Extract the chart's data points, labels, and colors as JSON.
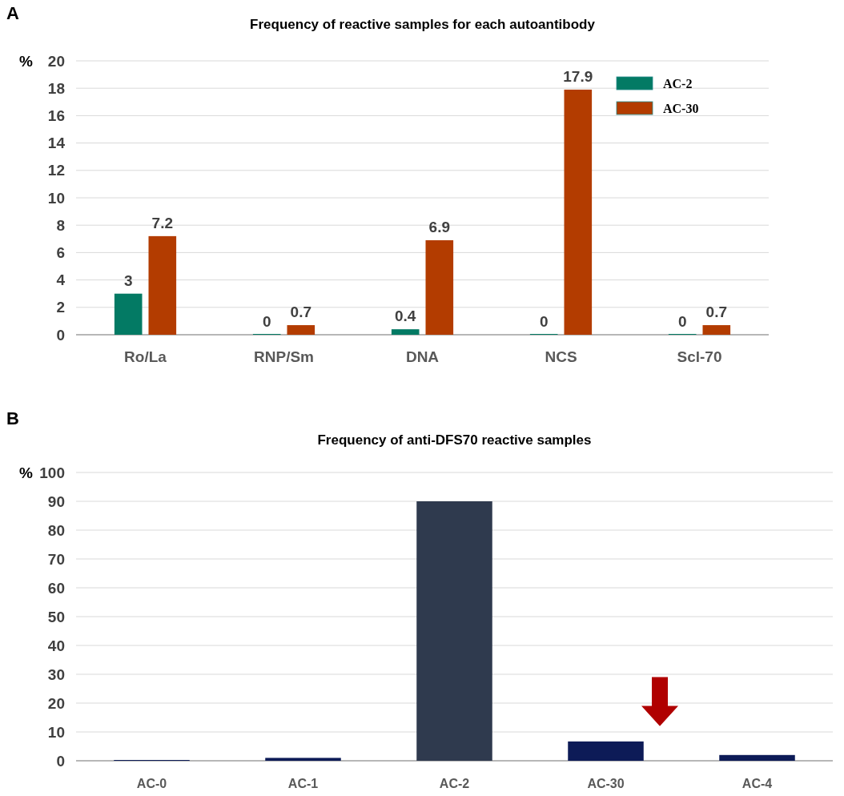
{
  "chart_data": [
    {
      "type": "bar",
      "title": "Frequency of reactive samples for each autoantibody",
      "ylabel": "%",
      "annotations": [
        "A"
      ],
      "categories": [
        "Ro/La",
        "RNP/Sm",
        "DNA",
        "NCS",
        "Scl-70"
      ],
      "series": [
        {
          "name": "AC-2",
          "color": "#037a64",
          "values": [
            3,
            0,
            0.4,
            0,
            0
          ]
        },
        {
          "name": "AC-30",
          "color": "#b33c00",
          "values": [
            7.2,
            0.7,
            6.9,
            17.9,
            0.7
          ]
        }
      ],
      "ylim": [
        0,
        20
      ],
      "yticks": [
        0,
        2,
        4,
        6,
        8,
        10,
        12,
        14,
        16,
        18,
        20
      ],
      "grid": "y",
      "legend": "top right",
      "data_labels": true
    },
    {
      "type": "bar",
      "title": "Frequency of anti-DFS70 reactive samples",
      "ylabel": "%",
      "annotations": [
        "B"
      ],
      "categories": [
        "AC-0",
        "AC-1",
        "AC-2",
        "AC-30",
        "AC-4"
      ],
      "values": [
        0,
        1,
        90,
        6.7,
        2
      ],
      "colors": [
        "#0d1b57",
        "#0d1b57",
        "#2f3a4e",
        "#0d1b57",
        "#0d1b57"
      ],
      "ylim": [
        0,
        100
      ],
      "yticks": [
        0,
        10,
        20,
        30,
        40,
        50,
        60,
        70,
        80,
        90,
        100
      ],
      "grid": "y"
    }
  ]
}
